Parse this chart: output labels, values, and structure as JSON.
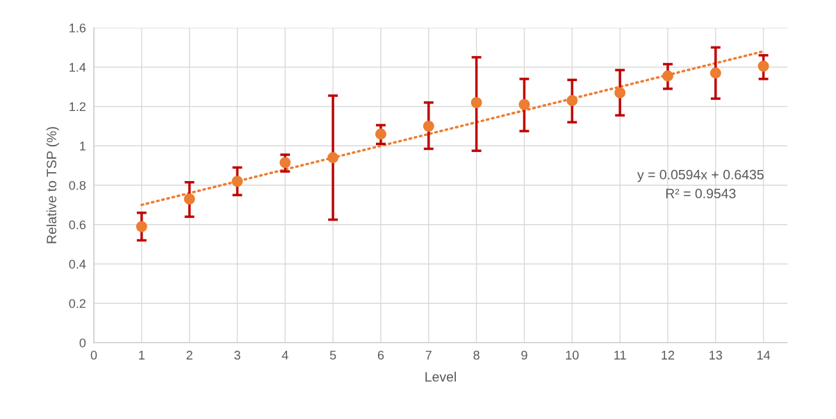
{
  "chart_data": {
    "type": "scatter",
    "xlabel": "Level",
    "ylabel": "Relative to TSP (%)",
    "xlim": [
      0,
      14.5
    ],
    "xticks": [
      0,
      1,
      2,
      3,
      4,
      5,
      6,
      7,
      8,
      9,
      10,
      11,
      12,
      13,
      14
    ],
    "ylim": [
      0,
      1.6
    ],
    "yticks": [
      0,
      0.2,
      0.4,
      0.6,
      0.8,
      1,
      1.2,
      1.4,
      1.6
    ],
    "grid": true,
    "series": [
      {
        "marker": "circle",
        "color": "#ed7d31",
        "x": [
          1,
          2,
          3,
          4,
          5,
          6,
          7,
          8,
          9,
          10,
          11,
          12,
          13,
          14
        ],
        "values": [
          0.59,
          0.73,
          0.82,
          0.915,
          0.94,
          1.06,
          1.1,
          1.22,
          1.21,
          1.23,
          1.27,
          1.355,
          1.37,
          1.405
        ],
        "errors": [
          [
            0.52,
            0.66
          ],
          [
            0.64,
            0.815
          ],
          [
            0.75,
            0.89
          ],
          [
            0.87,
            0.955
          ],
          [
            0.625,
            1.255
          ],
          [
            1.01,
            1.105
          ],
          [
            0.985,
            1.22
          ],
          [
            0.975,
            1.45
          ],
          [
            1.075,
            1.34
          ],
          [
            1.12,
            1.335
          ],
          [
            1.155,
            1.385
          ],
          [
            1.29,
            1.415
          ],
          [
            1.24,
            1.5
          ],
          [
            1.34,
            1.46
          ]
        ]
      },
      {
        "type": "line",
        "color": "#ed7d31",
        "line_style": "dotted",
        "x": [
          1,
          14
        ],
        "values": [
          0.7,
          1.48
        ]
      }
    ],
    "annotations": [
      "y = 0.0594x + 0.6435",
      "R² = 0.9543"
    ]
  }
}
